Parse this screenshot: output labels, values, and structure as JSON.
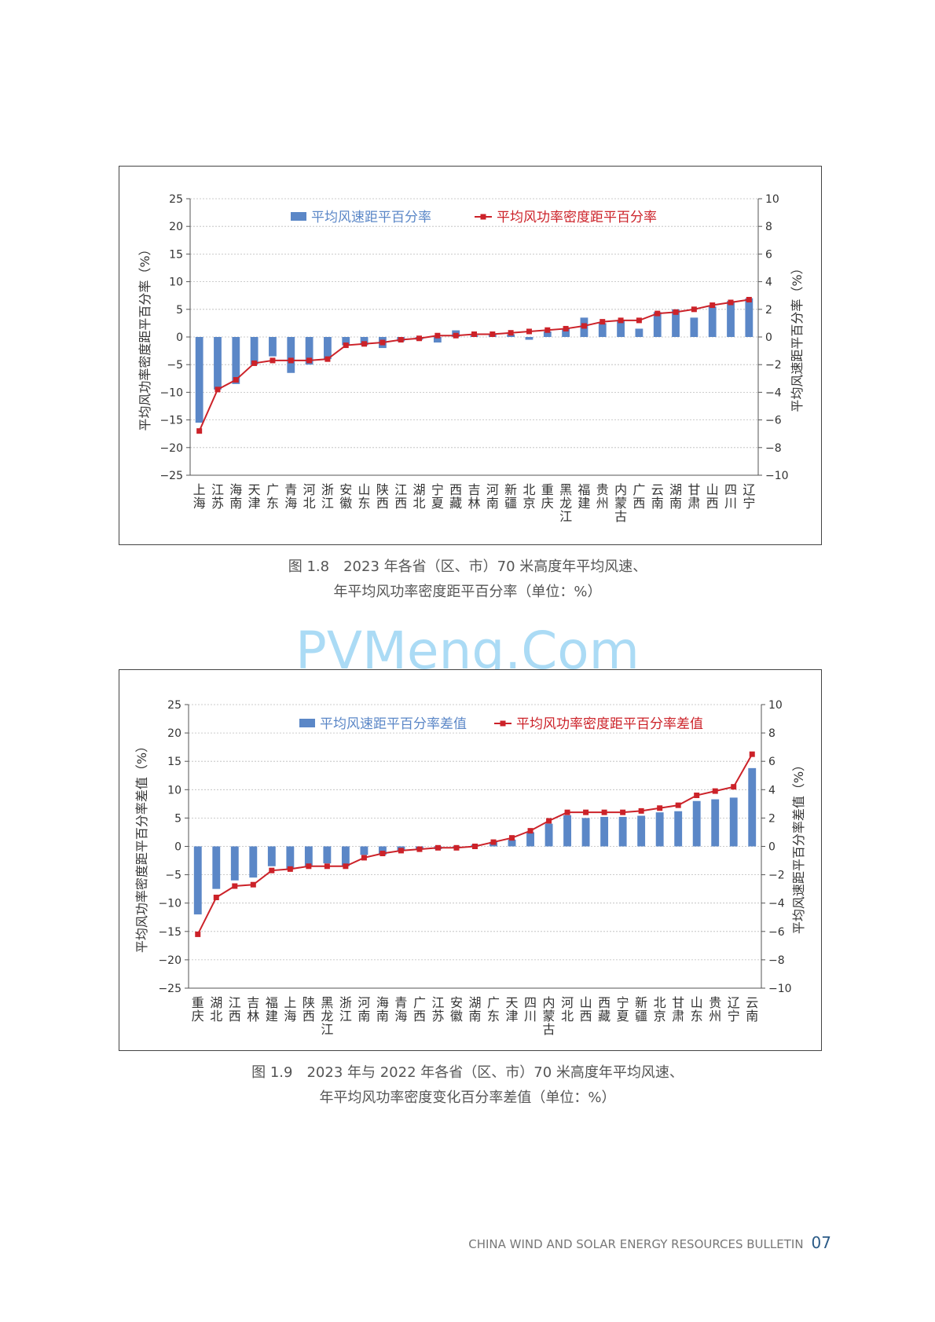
{
  "watermark": "PVMeng.Com",
  "footer": {
    "text": "CHINA WIND AND SOLAR ENERGY RESOURCES BULLETIN",
    "page": "07"
  },
  "colors": {
    "bar": "#5b87c7",
    "line": "#cc2229",
    "grid": "#bbbbbb",
    "axis": "#555555"
  },
  "chart_data": [
    {
      "type": "bar",
      "caption": [
        "图 1.8　2023 年各省（区、市）70 米高度年平均风速、",
        "年平均风功率密度距平百分率（单位：%）"
      ],
      "categories": [
        "上海",
        "江苏",
        "海南",
        "天津",
        "广东",
        "青海",
        "河北",
        "浙江",
        "安徽",
        "山东",
        "陕西",
        "江西",
        "湖北",
        "宁夏",
        "西藏",
        "吉林",
        "河南",
        "新疆",
        "北京",
        "重庆",
        "黑龙江",
        "福建",
        "贵州",
        "内蒙古",
        "广西",
        "云南",
        "湖南",
        "甘肃",
        "山西",
        "四川",
        "辽宁"
      ],
      "ylabel_left": "平均风功率密度距平百分率（%）",
      "ylabel_right": "平均风速距平百分率（%）",
      "ylim_left": [
        -25,
        25
      ],
      "yticks_left": [
        -25,
        -20,
        -15,
        -10,
        -5,
        0,
        5,
        10,
        15,
        20,
        25
      ],
      "ylim_right": [
        -10,
        10
      ],
      "yticks_right": [
        -10,
        -8,
        -6,
        -4,
        -2,
        0,
        2,
        4,
        6,
        8,
        10
      ],
      "grid": true,
      "legend_position": "top",
      "series": [
        {
          "name": "平均风速距平百分率",
          "type": "bar",
          "axis": "left",
          "values": [
            -15.5,
            -9.5,
            -8.5,
            -5,
            -3.5,
            -6.5,
            -5,
            -4,
            -1.5,
            -1.5,
            -2,
            -0.8,
            -0.5,
            -1,
            1.2,
            0.3,
            0.5,
            0.5,
            -0.5,
            1,
            1.5,
            3.5,
            2.5,
            3,
            1.5,
            4.5,
            5,
            3.5,
            5.5,
            6.5,
            7
          ]
        },
        {
          "name": "平均风功率密度距平百分率",
          "type": "line",
          "axis": "right",
          "values": [
            -6.8,
            -3.8,
            -3.1,
            -1.9,
            -1.7,
            -1.7,
            -1.7,
            -1.6,
            -0.6,
            -0.5,
            -0.4,
            -0.2,
            -0.1,
            0.1,
            0.1,
            0.2,
            0.2,
            0.3,
            0.4,
            0.5,
            0.6,
            0.8,
            1.1,
            1.2,
            1.2,
            1.7,
            1.8,
            2,
            2.3,
            2.5,
            2.7
          ]
        }
      ]
    },
    {
      "type": "bar",
      "caption": [
        "图 1.9　2023 年与 2022 年各省（区、市）70 米高度年平均风速、",
        "年平均风功率密度变化百分率差值（单位：%）"
      ],
      "categories": [
        "重庆",
        "湖北",
        "江西",
        "吉林",
        "福建",
        "上海",
        "陕西",
        "黑龙江",
        "浙江",
        "河南",
        "海南",
        "青海",
        "广西",
        "江苏",
        "安徽",
        "湖南",
        "广东",
        "天津",
        "四川",
        "内蒙古",
        "河北",
        "山西",
        "西藏",
        "宁夏",
        "新疆",
        "北京",
        "甘肃",
        "山东",
        "贵州",
        "辽宁",
        "云南"
      ],
      "ylabel_left": "平均风功率密度距平百分率差值（%）",
      "ylabel_right": "平均风速距平百分率差值（%）",
      "ylim_left": [
        -25,
        25
      ],
      "yticks_left": [
        -25,
        -20,
        -15,
        -10,
        -5,
        0,
        5,
        10,
        15,
        20,
        25
      ],
      "ylim_right": [
        -10,
        10
      ],
      "yticks_right": [
        -10,
        -8,
        -6,
        -4,
        -2,
        0,
        2,
        4,
        6,
        8,
        10
      ],
      "grid": true,
      "legend_position": "top",
      "series": [
        {
          "name": "平均风速距平百分率差值",
          "type": "bar",
          "axis": "left",
          "values": [
            -12,
            -7.5,
            -6,
            -5.5,
            -3.5,
            -4,
            -3.5,
            -3,
            -3.5,
            -1.5,
            -1.5,
            -0.8,
            -0.5,
            -0.5,
            -0.3,
            0.3,
            0.8,
            1.2,
            2.5,
            4,
            5.5,
            5,
            5.2,
            5.2,
            5.4,
            6,
            6.2,
            8,
            8.3,
            8.6,
            13.8
          ]
        },
        {
          "name": "平均风功率密度距平百分率差值",
          "type": "line",
          "axis": "right",
          "values": [
            -6.2,
            -3.6,
            -2.8,
            -2.7,
            -1.7,
            -1.6,
            -1.4,
            -1.4,
            -1.4,
            -0.8,
            -0.5,
            -0.3,
            -0.2,
            -0.1,
            -0.1,
            0,
            0.3,
            0.6,
            1.1,
            1.8,
            2.4,
            2.4,
            2.4,
            2.4,
            2.5,
            2.7,
            2.9,
            3.6,
            3.9,
            4.2,
            6.5
          ]
        }
      ]
    }
  ]
}
